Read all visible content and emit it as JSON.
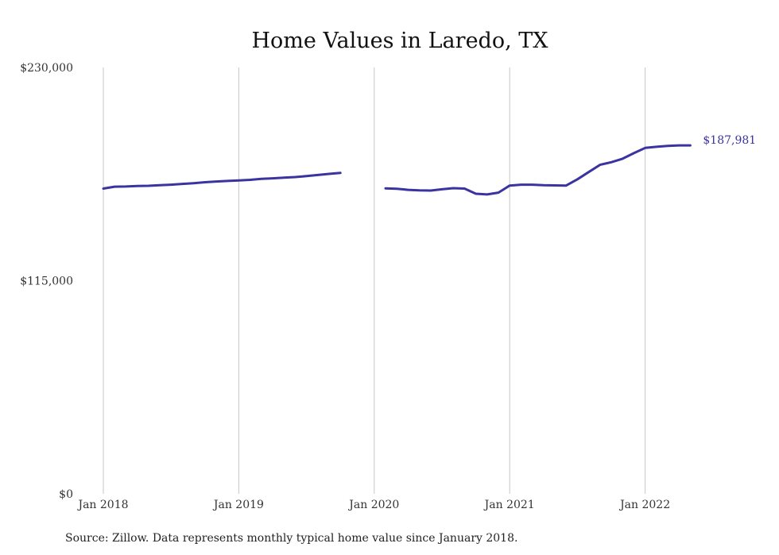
{
  "chart_data": {
    "type": "line",
    "title": "Home Values in Laredo, TX",
    "xlabel": "",
    "ylabel": "",
    "x_ticks": [
      "Jan 2018",
      "Jan 2019",
      "Jan 2020",
      "Jan 2021",
      "Jan 2022"
    ],
    "y_ticks": [
      "$230,000",
      "$115,000",
      "$0"
    ],
    "ylim": [
      0,
      230000
    ],
    "xlim": [
      "2018-01",
      "2022-12"
    ],
    "grid": "vertical",
    "series": [
      {
        "color": "#3a33a0",
        "segments": [
          {
            "x": [
              "2018-01",
              "2018-02",
              "2018-03",
              "2018-04",
              "2018-05",
              "2018-06",
              "2018-07",
              "2018-08",
              "2018-09",
              "2018-10",
              "2018-11",
              "2018-12",
              "2019-01",
              "2019-02",
              "2019-03",
              "2019-04",
              "2019-05",
              "2019-06",
              "2019-07",
              "2019-08",
              "2019-09",
              "2019-10"
            ],
            "y": [
              164700,
              165700,
              165800,
              166100,
              166200,
              166500,
              166800,
              167200,
              167600,
              168100,
              168500,
              168800,
              169100,
              169400,
              169900,
              170200,
              170600,
              170900,
              171400,
              172000,
              172600,
              173100
            ]
          },
          {
            "x": [
              "2020-02",
              "2020-03",
              "2020-04",
              "2020-05",
              "2020-06",
              "2020-07",
              "2020-08",
              "2020-09",
              "2020-10",
              "2020-11",
              "2020-12",
              "2021-01",
              "2021-02",
              "2021-03",
              "2021-04",
              "2021-05",
              "2021-06",
              "2021-07",
              "2021-08",
              "2021-09",
              "2021-10",
              "2021-11",
              "2021-12",
              "2022-01",
              "2022-02",
              "2022-03",
              "2022-04",
              "2022-05"
            ],
            "y": [
              164800,
              164600,
              164000,
              163700,
              163600,
              164300,
              164900,
              164700,
              161900,
              161500,
              162500,
              166300,
              166800,
              166800,
              166500,
              166400,
              166300,
              169700,
              173600,
              177500,
              178900,
              180800,
              183800,
              186600,
              187200,
              187700,
              187981,
              187981
            ]
          }
        ]
      }
    ],
    "end_label": "$187,981"
  },
  "footer": {
    "source": "Source: Zillow. Data represents monthly typical home value since January 2018."
  }
}
